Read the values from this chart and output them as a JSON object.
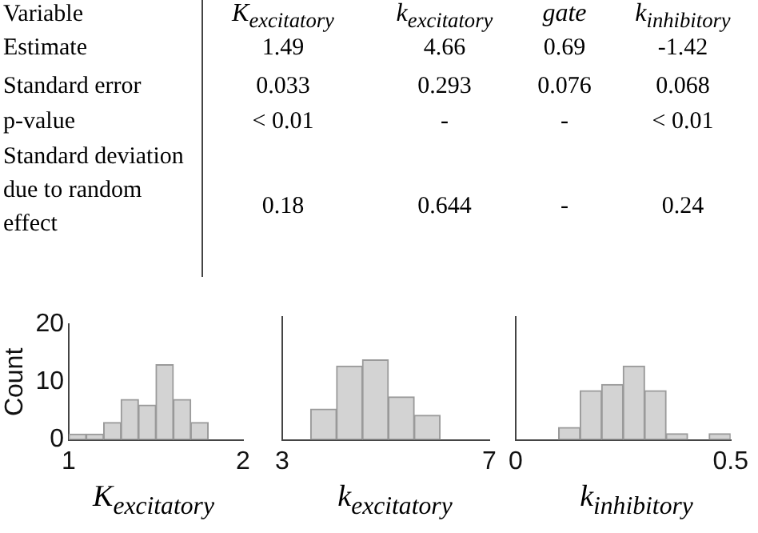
{
  "chart_data": [
    {
      "type": "other",
      "categories": [
        "Variable",
        "K$_{excitatory}$",
        "k$_{excitatory}$",
        "gate",
        "k$_{inhibitory}$"
      ],
      "y_categories": [
        "Estimate",
        "Standard error",
        "p-value",
        "Standard deviation due to random effect"
      ],
      "cell_labels": [
        [
          "1.49",
          "4.66",
          "0.69",
          "-1.42"
        ],
        [
          "0.033",
          "0.293",
          "0.076",
          "0.068"
        ],
        [
          "< 0.01",
          "-",
          "-",
          "< 0.01"
        ],
        [
          "0.18",
          "0.644",
          "-",
          "0.24"
        ]
      ]
    },
    {
      "type": "histogram",
      "bins": [
        1.0,
        1.1,
        1.2,
        1.3,
        1.4,
        1.5,
        1.6,
        1.7,
        1.8
      ],
      "values": [
        1,
        1,
        3,
        7,
        6,
        13,
        7,
        3
      ],
      "color": "#d3d3d3",
      "xlabel": "K$_{excitatory}$",
      "ylabel": "Count",
      "xlim": [
        1,
        2
      ],
      "xticks": [
        1,
        2
      ],
      "ylim": [
        0,
        20
      ],
      "yticks": [
        0,
        10,
        20
      ]
    },
    {
      "type": "histogram",
      "bins": [
        3.55,
        4.05,
        4.55,
        5.05,
        5.55,
        6.05
      ],
      "values": [
        5,
        12,
        13,
        7,
        4
      ],
      "color": "#d3d3d3",
      "xlabel": "k$_{excitatory}$",
      "xlim": [
        3,
        7
      ],
      "xticks": [
        3,
        7
      ],
      "ylim": [
        0,
        20
      ],
      "yticks": [
        0,
        10,
        20
      ],
      "tick_labels": "x"
    },
    {
      "type": "histogram",
      "bins": [
        0.1,
        0.15,
        0.2,
        0.25,
        0.3,
        0.35,
        0.4,
        0.45,
        0.5
      ],
      "values": [
        2,
        8,
        9,
        12,
        8,
        1,
        0,
        1
      ],
      "color": "#d3d3d3",
      "xlabel": "k$_{inhibitory}$",
      "xlim": [
        0,
        0.5
      ],
      "xticks": [
        0,
        0.5
      ],
      "ylim": [
        0,
        20
      ],
      "yticks": [
        0,
        10,
        20
      ],
      "tick_labels": "x"
    }
  ]
}
